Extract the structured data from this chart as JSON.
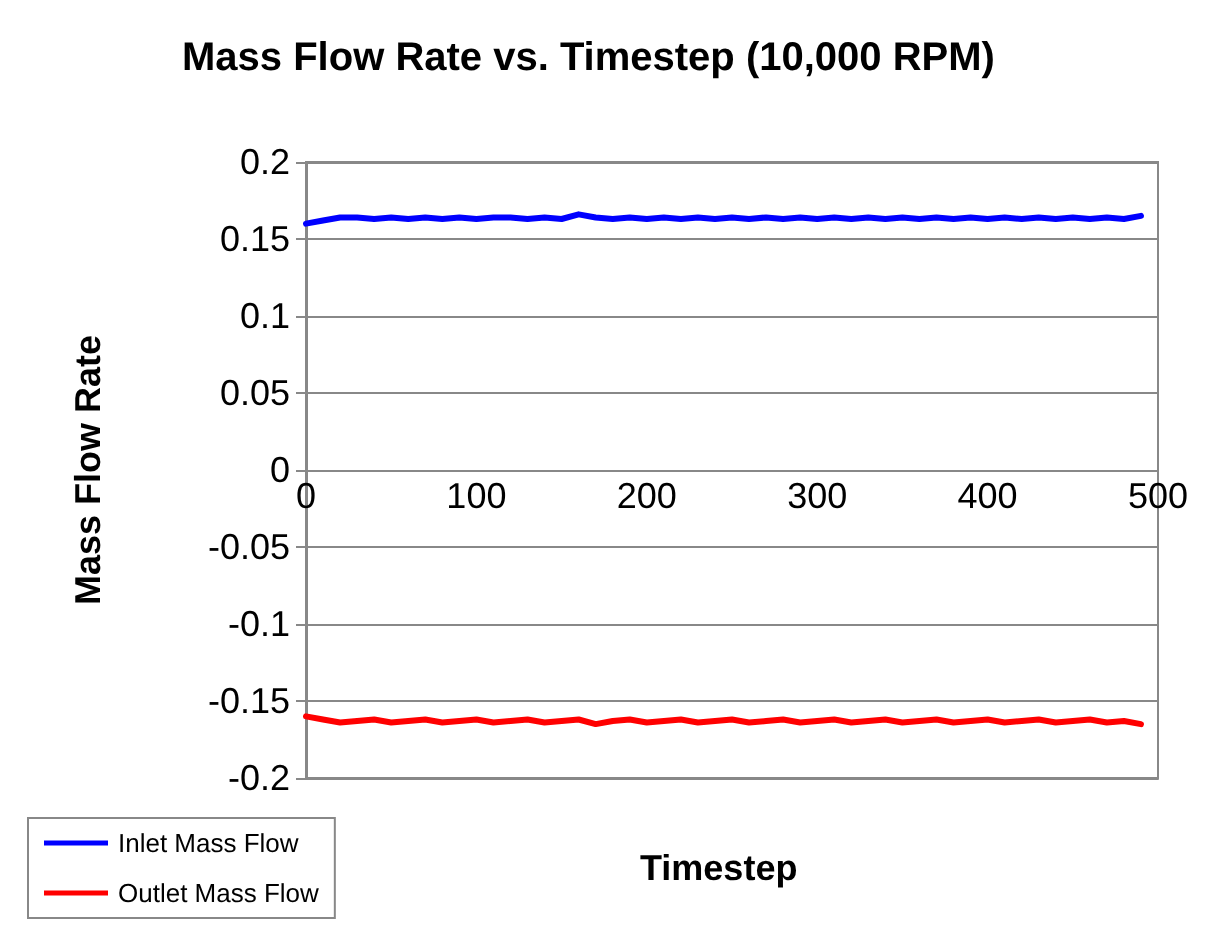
{
  "chart_data": {
    "type": "line",
    "title": "Mass Flow Rate vs. Timestep (10,000 RPM)",
    "xlabel": "Timestep",
    "ylabel": "Mass Flow Rate",
    "x": [
      0,
      10,
      20,
      30,
      40,
      50,
      60,
      70,
      80,
      90,
      100,
      110,
      120,
      130,
      140,
      150,
      160,
      170,
      180,
      190,
      200,
      210,
      220,
      230,
      240,
      250,
      260,
      270,
      280,
      290,
      300,
      310,
      320,
      330,
      340,
      350,
      360,
      370,
      380,
      390,
      400,
      410,
      420,
      430,
      440,
      450,
      460,
      470,
      480,
      490
    ],
    "series": [
      {
        "name": "Inlet Mass Flow",
        "color": "#0000ff",
        "values": [
          0.16,
          0.162,
          0.164,
          0.164,
          0.163,
          0.164,
          0.163,
          0.164,
          0.163,
          0.164,
          0.163,
          0.164,
          0.164,
          0.163,
          0.164,
          0.163,
          0.166,
          0.164,
          0.163,
          0.164,
          0.163,
          0.164,
          0.163,
          0.164,
          0.163,
          0.164,
          0.163,
          0.164,
          0.163,
          0.164,
          0.163,
          0.164,
          0.163,
          0.164,
          0.163,
          0.164,
          0.163,
          0.164,
          0.163,
          0.164,
          0.163,
          0.164,
          0.163,
          0.164,
          0.163,
          0.164,
          0.163,
          0.164,
          0.163,
          0.165
        ]
      },
      {
        "name": "Outlet Mass Flow",
        "color": "#ff0000",
        "values": [
          -0.16,
          -0.162,
          -0.164,
          -0.163,
          -0.162,
          -0.164,
          -0.163,
          -0.162,
          -0.164,
          -0.163,
          -0.162,
          -0.164,
          -0.163,
          -0.162,
          -0.164,
          -0.163,
          -0.162,
          -0.165,
          -0.163,
          -0.162,
          -0.164,
          -0.163,
          -0.162,
          -0.164,
          -0.163,
          -0.162,
          -0.164,
          -0.163,
          -0.162,
          -0.164,
          -0.163,
          -0.162,
          -0.164,
          -0.163,
          -0.162,
          -0.164,
          -0.163,
          -0.162,
          -0.164,
          -0.163,
          -0.162,
          -0.164,
          -0.163,
          -0.162,
          -0.164,
          -0.163,
          -0.162,
          -0.164,
          -0.163,
          -0.165
        ]
      }
    ],
    "xlim": [
      0,
      500
    ],
    "xticks": [
      0,
      100,
      200,
      300,
      400,
      500
    ],
    "ylim": [
      -0.2,
      0.2
    ],
    "yticks": [
      -0.2,
      -0.15,
      -0.1,
      -0.05,
      0,
      0.05,
      0.1,
      0.15,
      0.2
    ],
    "grid": "y",
    "legend": "bottom left",
    "marker": "none",
    "line_style": "solid"
  }
}
